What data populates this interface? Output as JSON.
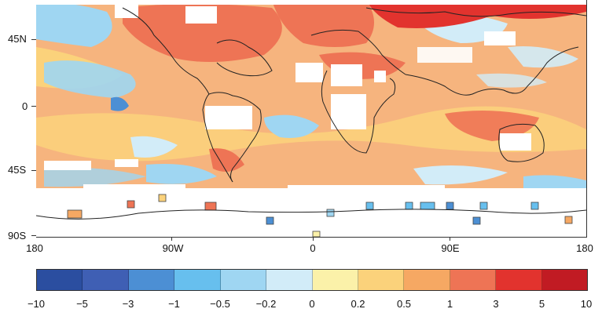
{
  "map": {
    "lat_labels": [
      "45N",
      "0",
      "45S",
      "90S"
    ],
    "lon_labels": [
      "180",
      "90W",
      "0",
      "90E",
      "180"
    ]
  },
  "legend": {
    "labels": [
      "−10",
      "−5",
      "−3",
      "−1",
      "−0.5",
      "−0.2",
      "0",
      "0.2",
      "0.5",
      "1",
      "3",
      "5",
      "10"
    ],
    "colors": [
      "#2b4ea0",
      "#3f5fb4",
      "#4c8fd4",
      "#67bfee",
      "#9fd6f2",
      "#d2ecf8",
      "#fbf1a9",
      "#fbd27b",
      "#f6a863",
      "#ee7455",
      "#e2332e",
      "#c11b23",
      "#8b0a0f"
    ]
  },
  "map_colors": {
    "ocean_base": "#f6b47e",
    "no_data": "#ffffff",
    "coast": "#222222"
  }
}
